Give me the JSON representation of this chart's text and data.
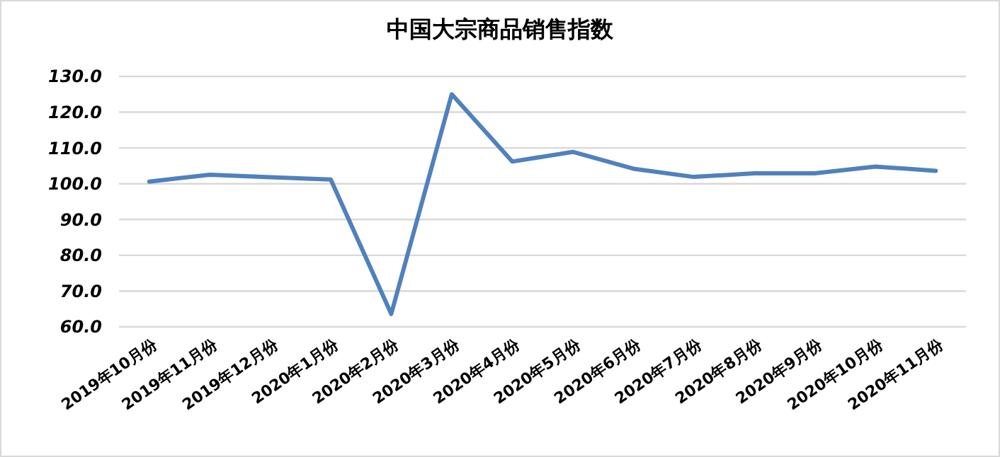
{
  "chart_data": {
    "type": "line",
    "title": "中国大宗商品销售指数",
    "categories": [
      "2019年10月份",
      "2019年11月份",
      "2019年12月份",
      "2020年1月份",
      "2020年2月份",
      "2020年3月份",
      "2020年4月份",
      "2020年5月份",
      "2020年6月份",
      "2020年7月份",
      "2020年8月份",
      "2020年9月份",
      "2020年10月份",
      "2020年11月份"
    ],
    "series": [
      {
        "color": "#4f81bd",
        "values": [
          100.6,
          102.5,
          101.8,
          101.2,
          63.6,
          125.0,
          106.2,
          108.9,
          104.2,
          101.9,
          102.9,
          102.9,
          104.8,
          103.6
        ]
      }
    ],
    "ylim": [
      60,
      130
    ],
    "yticks": [
      {
        "value": 60,
        "label": "60.0"
      },
      {
        "value": 70,
        "label": "70.0"
      },
      {
        "value": 80,
        "label": "80.0"
      },
      {
        "value": 90,
        "label": "90.0"
      },
      {
        "value": 100,
        "label": "100.0"
      },
      {
        "value": 110,
        "label": "110.0"
      },
      {
        "value": 120,
        "label": "120.0"
      },
      {
        "value": 130,
        "label": "130.0"
      }
    ],
    "grid": "y",
    "marker": "none",
    "line_style": "solid"
  }
}
